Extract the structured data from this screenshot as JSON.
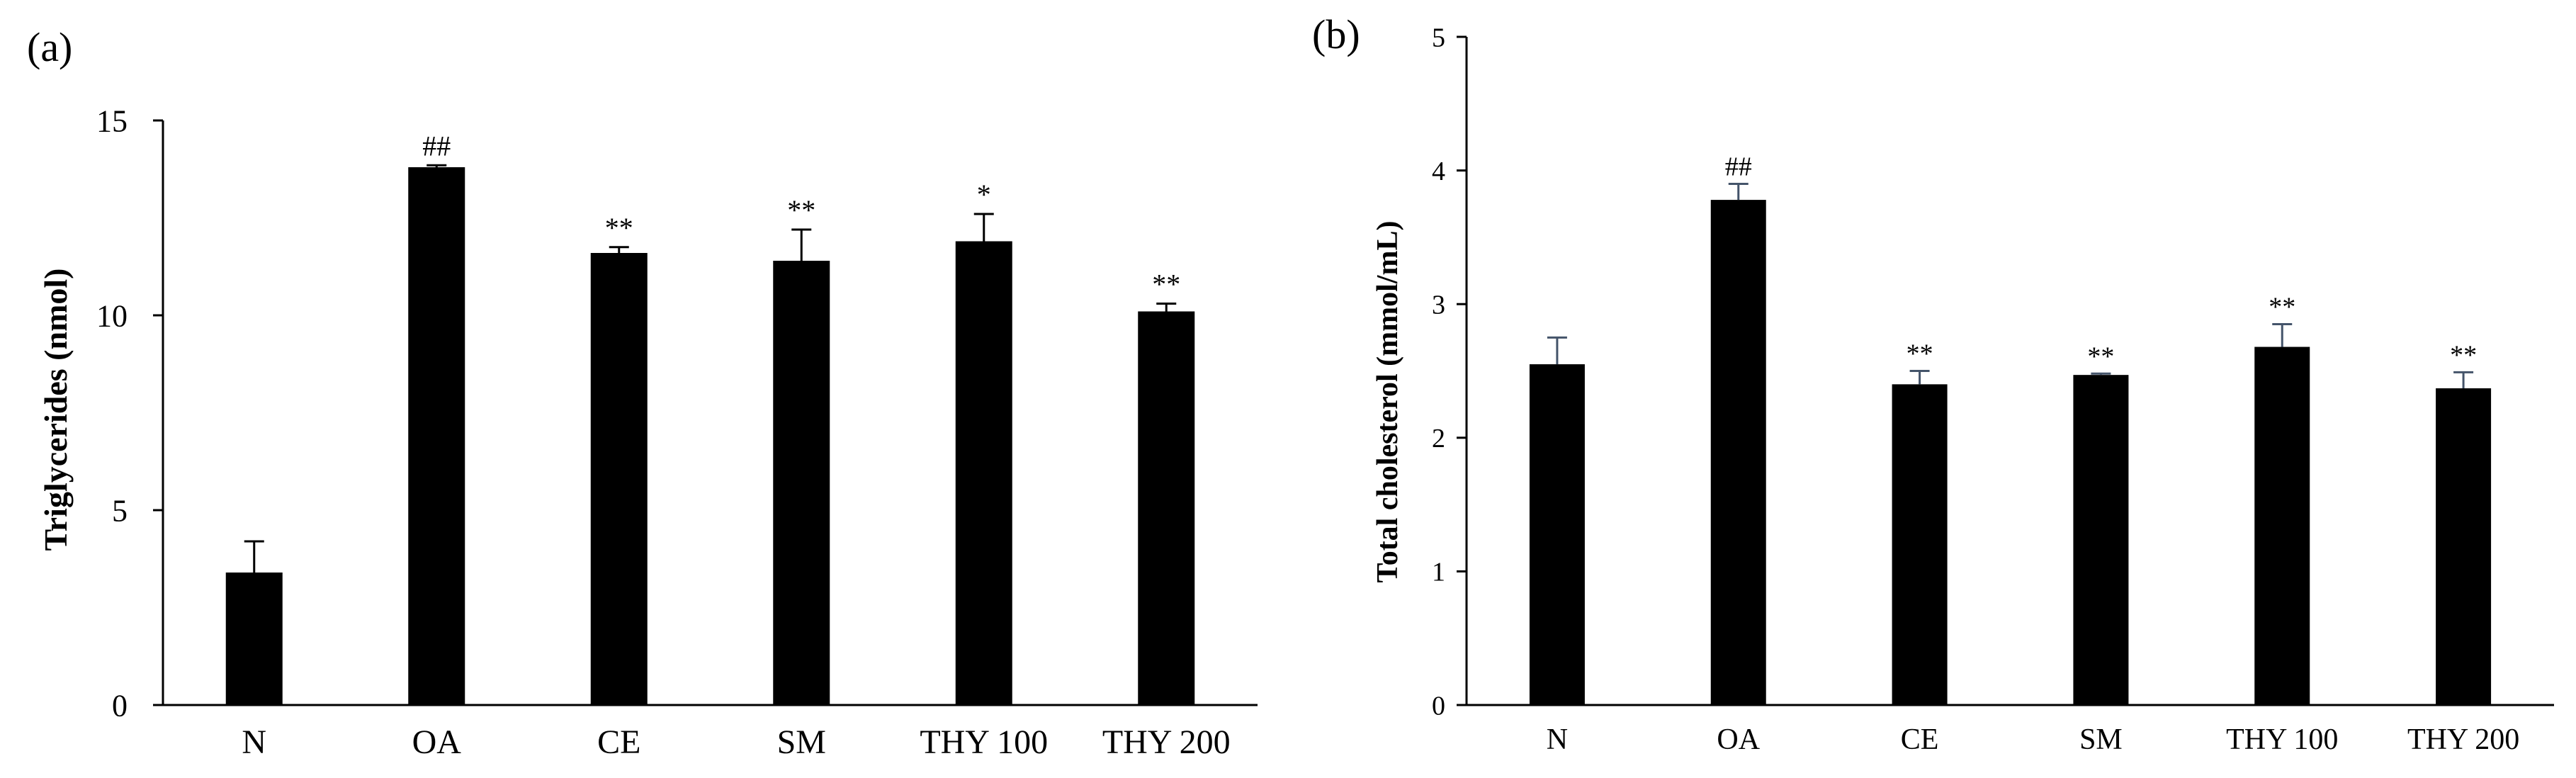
{
  "figure": {
    "panels": [
      {
        "panel_label": "(a)",
        "chart_data": {
          "type": "bar",
          "title": "",
          "xlabel": "",
          "ylabel": "Triglycerides (nmol)",
          "categories": [
            "N",
            "OA",
            "CE",
            "SM",
            "THY 100",
            "THY 200"
          ],
          "values": [
            3.4,
            13.8,
            11.6,
            11.4,
            11.9,
            10.1
          ],
          "errors": [
            0.8,
            0.05,
            0.15,
            0.8,
            0.7,
            0.2
          ],
          "annotations": [
            "",
            "##",
            "**",
            "**",
            "*",
            "**"
          ],
          "ylim": [
            0,
            15
          ],
          "yticks": [
            0,
            5,
            10,
            15
          ],
          "grid": false,
          "bar_color": "#000000",
          "error_color": "#000000"
        }
      },
      {
        "panel_label": "(b)",
        "chart_data": {
          "type": "bar",
          "title": "",
          "xlabel": "",
          "ylabel": "Total cholesterol (mmol/mL)",
          "categories": [
            "N",
            "OA",
            "CE",
            "SM",
            "THY 100",
            "THY 200"
          ],
          "values": [
            2.55,
            3.78,
            2.4,
            2.47,
            2.68,
            2.37
          ],
          "errors": [
            0.2,
            0.12,
            0.1,
            0.01,
            0.17,
            0.12
          ],
          "annotations": [
            "",
            "##",
            "**",
            "**",
            "**",
            "**"
          ],
          "ylim": [
            0,
            5
          ],
          "yticks": [
            0,
            1,
            2,
            3,
            4,
            5
          ],
          "grid": false,
          "bar_color": "#000000",
          "error_color": "#44546a"
        }
      }
    ]
  }
}
